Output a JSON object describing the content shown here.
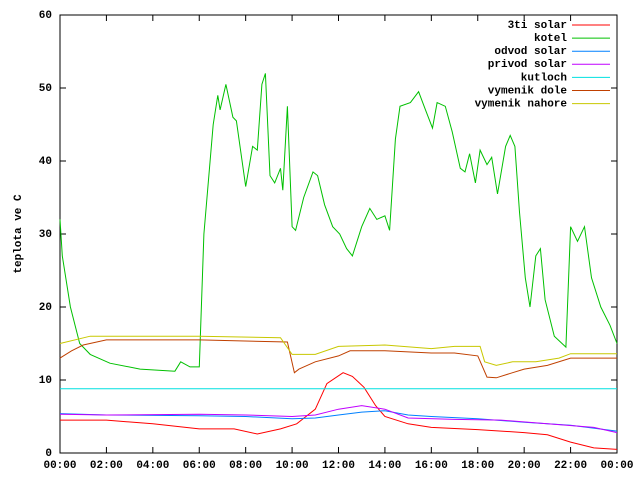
{
  "chart_data": {
    "type": "line",
    "y_label": "teplota ve C",
    "xlim": [
      0,
      24
    ],
    "xticks": [
      {
        "value": 0,
        "label": "00:00"
      },
      {
        "value": 2,
        "label": "02:00"
      },
      {
        "value": 4,
        "label": "04:00"
      },
      {
        "value": 6,
        "label": "06:00"
      },
      {
        "value": 8,
        "label": "08:00"
      },
      {
        "value": 10,
        "label": "10:00"
      },
      {
        "value": 12,
        "label": "12:00"
      },
      {
        "value": 14,
        "label": "14:00"
      },
      {
        "value": 16,
        "label": "16:00"
      },
      {
        "value": 18,
        "label": "18:00"
      },
      {
        "value": 20,
        "label": "20:00"
      },
      {
        "value": 22,
        "label": "22:00"
      },
      {
        "value": 24,
        "label": "00:00"
      }
    ],
    "ylim": [
      0,
      60
    ],
    "yticks": [
      0,
      10,
      20,
      30,
      40,
      50,
      60
    ],
    "legend": "top-right",
    "series": [
      {
        "name": "3ti solar",
        "color": "#ff0000",
        "x": [
          0,
          2,
          4,
          6,
          7.5,
          8.5,
          9.5,
          10.2,
          11,
          11.5,
          12.2,
          12.6,
          13.1,
          13.6,
          14,
          15,
          16,
          18,
          20,
          21,
          22,
          23,
          24
        ],
        "values": [
          4.5,
          4.5,
          4,
          3.3,
          3.3,
          2.6,
          3.3,
          4,
          6,
          9.5,
          11,
          10.5,
          9,
          6.5,
          5,
          4,
          3.5,
          3.2,
          2.8,
          2.5,
          1.5,
          0.7,
          0.5
        ]
      },
      {
        "name": "kotel",
        "color": "#00c000",
        "x": [
          0,
          0.1,
          0.45,
          0.85,
          1.3,
          2.15,
          3.45,
          4.95,
          5.2,
          5.6,
          6.0,
          6.2,
          6.6,
          6.8,
          6.9,
          7.15,
          7.45,
          7.6,
          8.0,
          8.3,
          8.5,
          8.7,
          8.85,
          9.05,
          9.25,
          9.5,
          9.6,
          9.8,
          10.0,
          10.15,
          10.5,
          10.9,
          11.1,
          11.4,
          11.75,
          12.05,
          12.35,
          12.6,
          13.0,
          13.35,
          13.65,
          14.0,
          14.2,
          14.45,
          14.65,
          15.1,
          15.45,
          15.75,
          16.05,
          16.25,
          16.6,
          16.9,
          17.25,
          17.45,
          17.65,
          17.9,
          18.1,
          18.4,
          18.6,
          18.85,
          19.2,
          19.4,
          19.6,
          19.8,
          20.05,
          20.25,
          20.5,
          20.7,
          20.9,
          21.3,
          21.8,
          22.0,
          22.3,
          22.6,
          22.9,
          23.3,
          23.7,
          24
        ],
        "values": [
          32,
          27,
          20,
          15,
          13.5,
          12.3,
          11.5,
          11.2,
          12.5,
          11.8,
          11.8,
          30,
          45,
          49,
          47,
          50.5,
          46,
          45.5,
          36.5,
          42,
          41.5,
          50.5,
          52,
          38,
          37,
          39,
          36,
          47.5,
          31,
          30.5,
          35,
          38.5,
          38,
          34,
          31,
          30,
          28,
          27,
          31,
          33.5,
          32,
          32.5,
          30.5,
          43,
          47.5,
          48,
          49.5,
          47,
          44.5,
          48,
          47.5,
          44,
          39,
          38.5,
          41,
          37,
          41.5,
          39.5,
          40.5,
          35.5,
          42,
          43.5,
          42,
          33,
          24,
          20,
          27,
          28,
          21,
          16,
          14.5,
          31,
          29,
          31,
          24,
          20,
          17.5,
          15
        ]
      },
      {
        "name": "odvod solar",
        "color": "#0080ff",
        "x": [
          0,
          2,
          6,
          8,
          10,
          11,
          12,
          13,
          14,
          15,
          16,
          18,
          20,
          22,
          24
        ],
        "values": [
          5.4,
          5.2,
          5.1,
          5,
          4.7,
          4.8,
          5.2,
          5.6,
          5.8,
          5.2,
          5,
          4.7,
          4.2,
          3.8,
          3
        ]
      },
      {
        "name": "privod solar",
        "color": "#c000ff",
        "x": [
          0,
          2,
          6,
          8,
          10,
          11,
          12,
          13,
          14,
          15,
          17,
          19,
          21,
          23,
          24
        ],
        "values": [
          5.3,
          5.2,
          5.3,
          5.2,
          5,
          5.2,
          6,
          6.5,
          6,
          4.8,
          4.6,
          4.5,
          4,
          3.5,
          2.8
        ]
      },
      {
        "name": "kutloch",
        "color": "#00e0e0",
        "x": [
          0,
          6,
          12,
          18,
          24
        ],
        "values": [
          8.8,
          8.8,
          8.8,
          8.8,
          8.8
        ]
      },
      {
        "name": "vymenik dole",
        "color": "#c04000",
        "x": [
          0,
          0.5,
          1,
          2,
          6,
          9.8,
          10.1,
          10.3,
          11,
          12,
          12.5,
          14,
          16,
          17,
          18,
          18.4,
          18.8,
          19.5,
          20,
          21,
          22,
          24
        ],
        "values": [
          13,
          14,
          14.8,
          15.5,
          15.5,
          15.2,
          11,
          11.5,
          12.5,
          13.3,
          14,
          14,
          13.7,
          13.7,
          13.3,
          10.4,
          10.3,
          11,
          11.5,
          12,
          13,
          13
        ]
      },
      {
        "name": "vymenik nahore",
        "color": "#c8c800",
        "x": [
          0,
          1.3,
          6,
          9.5,
          10,
          11,
          12,
          14,
          16,
          17,
          18.1,
          18.3,
          18.8,
          19.5,
          20.5,
          21.5,
          22,
          24
        ],
        "values": [
          15,
          16,
          16,
          15.8,
          13.5,
          13.5,
          14.6,
          14.8,
          14.3,
          14.6,
          14.6,
          12.5,
          12,
          12.5,
          12.5,
          13,
          13.6,
          13.6
        ]
      }
    ]
  }
}
